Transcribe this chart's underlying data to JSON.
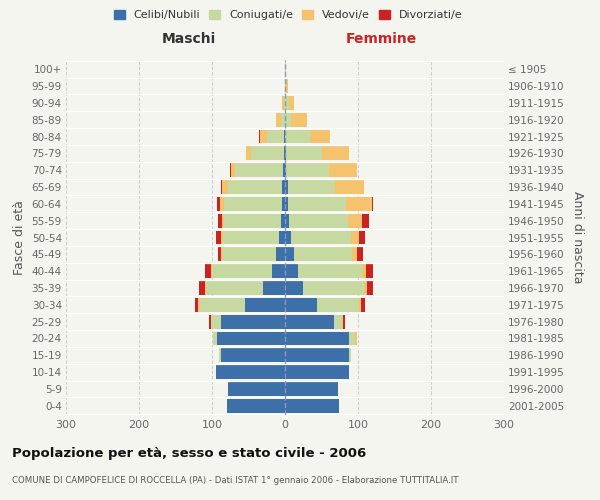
{
  "age_groups": [
    "0-4",
    "5-9",
    "10-14",
    "15-19",
    "20-24",
    "25-29",
    "30-34",
    "35-39",
    "40-44",
    "45-49",
    "50-54",
    "55-59",
    "60-64",
    "65-69",
    "70-74",
    "75-79",
    "80-84",
    "85-89",
    "90-94",
    "95-99",
    "100+"
  ],
  "birth_years": [
    "2001-2005",
    "1996-2000",
    "1991-1995",
    "1986-1990",
    "1981-1985",
    "1976-1980",
    "1971-1975",
    "1966-1970",
    "1961-1965",
    "1956-1960",
    "1951-1955",
    "1946-1950",
    "1941-1945",
    "1936-1940",
    "1931-1935",
    "1926-1930",
    "1921-1925",
    "1916-1920",
    "1911-1915",
    "1906-1910",
    "≤ 1905"
  ],
  "males_celibi": [
    80,
    78,
    95,
    88,
    93,
    88,
    55,
    30,
    18,
    12,
    8,
    5,
    4,
    4,
    3,
    2,
    2,
    0,
    0,
    0,
    0
  ],
  "males_coniugati": [
    0,
    0,
    0,
    2,
    6,
    14,
    62,
    78,
    82,
    74,
    77,
    79,
    80,
    74,
    65,
    44,
    22,
    5,
    2,
    0,
    0
  ],
  "males_vedovi": [
    0,
    0,
    0,
    0,
    0,
    0,
    2,
    2,
    2,
    2,
    2,
    2,
    5,
    8,
    6,
    8,
    10,
    7,
    2,
    0,
    0
  ],
  "males_divorziati": [
    0,
    0,
    0,
    0,
    0,
    2,
    4,
    8,
    8,
    4,
    8,
    6,
    4,
    2,
    2,
    0,
    2,
    0,
    0,
    0,
    0
  ],
  "fem_nubili": [
    74,
    73,
    88,
    88,
    88,
    67,
    44,
    25,
    18,
    12,
    8,
    6,
    4,
    4,
    2,
    2,
    0,
    0,
    0,
    0,
    0
  ],
  "fem_coniugate": [
    0,
    0,
    0,
    2,
    8,
    11,
    58,
    83,
    88,
    80,
    83,
    80,
    79,
    64,
    58,
    48,
    34,
    8,
    5,
    2,
    0
  ],
  "fem_vedove": [
    0,
    0,
    0,
    0,
    2,
    2,
    2,
    5,
    5,
    7,
    10,
    20,
    36,
    40,
    38,
    38,
    28,
    22,
    8,
    2,
    2
  ],
  "fem_divorziate": [
    0,
    0,
    0,
    0,
    0,
    2,
    5,
    8,
    10,
    8,
    8,
    9,
    2,
    0,
    0,
    0,
    0,
    0,
    0,
    0,
    0
  ],
  "colors_celibi": "#3d6fa8",
  "colors_coniugati": "#c5d9a0",
  "colors_vedovi": "#f5c36e",
  "colors_divorziati": "#cc2222",
  "xlim": 300,
  "title": "Popolazione per età, sesso e stato civile - 2006",
  "subtitle": "COMUNE DI CAMPOFELICE DI ROCCELLA (PA) - Dati ISTAT 1° gennaio 2006 - Elaborazione TUTTITALIA.IT",
  "ylabel_left": "Fasce di età",
  "ylabel_right": "Anni di nascita",
  "label_maschi": "Maschi",
  "label_femmine": "Femmine",
  "legend_labels": [
    "Celibi/Nubili",
    "Coniugati/e",
    "Vedovi/e",
    "Divorziati/e"
  ],
  "bg_color": "#f5f5f0"
}
